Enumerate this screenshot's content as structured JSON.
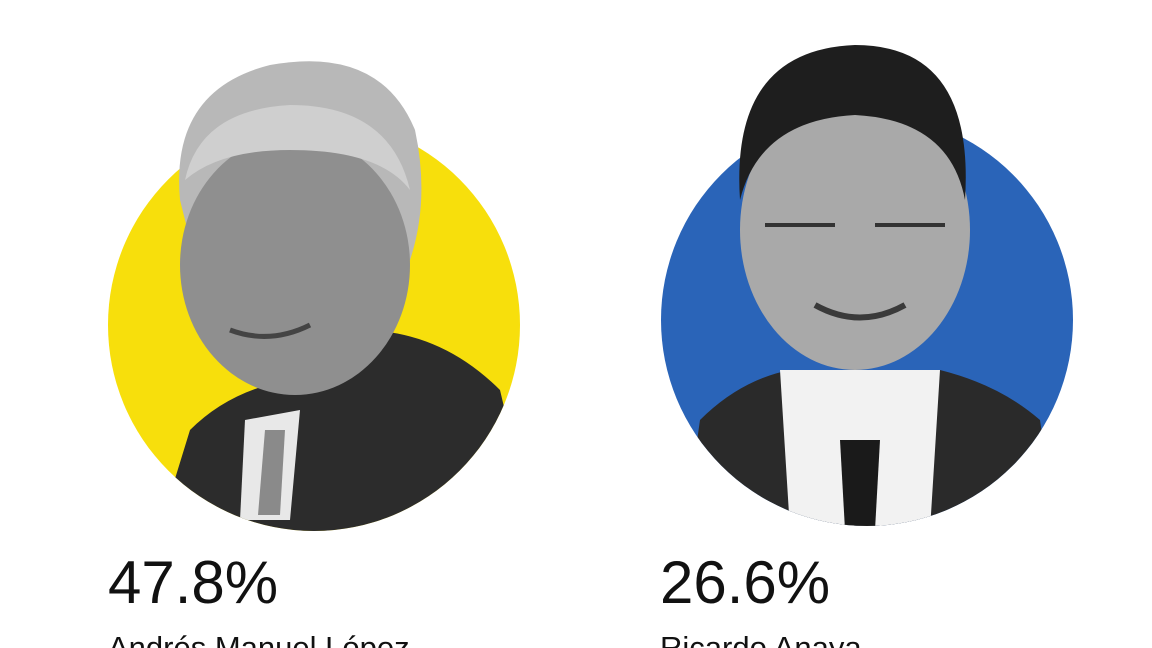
{
  "candidates": [
    {
      "percent": "47.8%",
      "name": "Andrés Manuel López"
    },
    {
      "percent": "26.6%",
      "name": "Ricardo Anaya"
    }
  ]
}
